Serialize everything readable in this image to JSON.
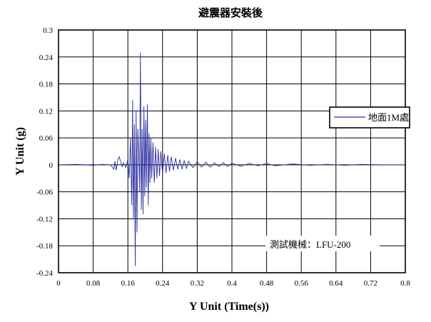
{
  "chart_data": {
    "type": "line",
    "title": "避震器安裝後",
    "xlabel": "Y Unit (Time(s))",
    "ylabel": "Y Unit (g)",
    "xlim": [
      0,
      0.8
    ],
    "ylim": [
      -0.24,
      0.3
    ],
    "xticks": [
      "0",
      "0.08",
      "0.16",
      "0.24",
      "0.32",
      "0.4",
      "0.48",
      "0.56",
      "0.64",
      "0.72",
      "0.8"
    ],
    "yticks": [
      "0.3",
      "0.24",
      "0.18",
      "0.12",
      "0.06",
      "0",
      "-0.06",
      "-0.12",
      "-0.18",
      "-0.24"
    ],
    "grid": true,
    "legend_position": "right",
    "annotation": "測試機械：LFU-200",
    "line_color": "#2b2fa0",
    "series": [
      {
        "name": "地面1M處",
        "x": [
          0,
          0.04,
          0.08,
          0.1,
          0.12,
          0.128,
          0.13,
          0.133,
          0.137,
          0.14,
          0.143,
          0.147,
          0.15,
          0.155,
          0.16,
          0.163,
          0.166,
          0.169,
          0.171,
          0.173,
          0.175,
          0.177,
          0.179,
          0.181,
          0.183,
          0.185,
          0.187,
          0.189,
          0.191,
          0.193,
          0.195,
          0.197,
          0.199,
          0.201,
          0.203,
          0.205,
          0.207,
          0.209,
          0.211,
          0.213,
          0.215,
          0.218,
          0.221,
          0.224,
          0.227,
          0.23,
          0.233,
          0.236,
          0.24,
          0.244,
          0.248,
          0.252,
          0.256,
          0.26,
          0.265,
          0.27,
          0.275,
          0.28,
          0.285,
          0.29,
          0.295,
          0.3,
          0.31,
          0.32,
          0.33,
          0.34,
          0.35,
          0.36,
          0.37,
          0.38,
          0.39,
          0.4,
          0.42,
          0.44,
          0.46,
          0.48,
          0.5,
          0.54,
          0.58,
          0.62,
          0.66,
          0.7,
          0.75,
          0.8
        ],
        "y": [
          0,
          0.001,
          -0.001,
          0.001,
          0,
          -0.01,
          0.008,
          -0.012,
          0.012,
          0.018,
          0.008,
          -0.004,
          0.005,
          -0.006,
          0.012,
          -0.03,
          0.06,
          -0.09,
          0.145,
          -0.12,
          0.09,
          -0.225,
          0.12,
          -0.15,
          0.08,
          0.025,
          -0.06,
          0.25,
          -0.1,
          0.08,
          -0.11,
          0.13,
          -0.07,
          0.1,
          -0.05,
          0.135,
          -0.09,
          0.07,
          -0.04,
          0.06,
          -0.03,
          0.05,
          -0.04,
          0.04,
          -0.03,
          0.035,
          -0.025,
          0.03,
          -0.02,
          0.025,
          -0.018,
          0.022,
          -0.015,
          0.018,
          -0.012,
          0.015,
          -0.01,
          0.012,
          -0.01,
          0.01,
          -0.008,
          0.008,
          -0.006,
          0.007,
          -0.005,
          0.006,
          -0.005,
          0.005,
          -0.004,
          0.005,
          -0.004,
          0.004,
          -0.003,
          0.003,
          -0.002,
          0.003,
          -0.002,
          0.002,
          -0.001,
          0.001,
          -0.001,
          0.001,
          0,
          0
        ]
      }
    ]
  }
}
